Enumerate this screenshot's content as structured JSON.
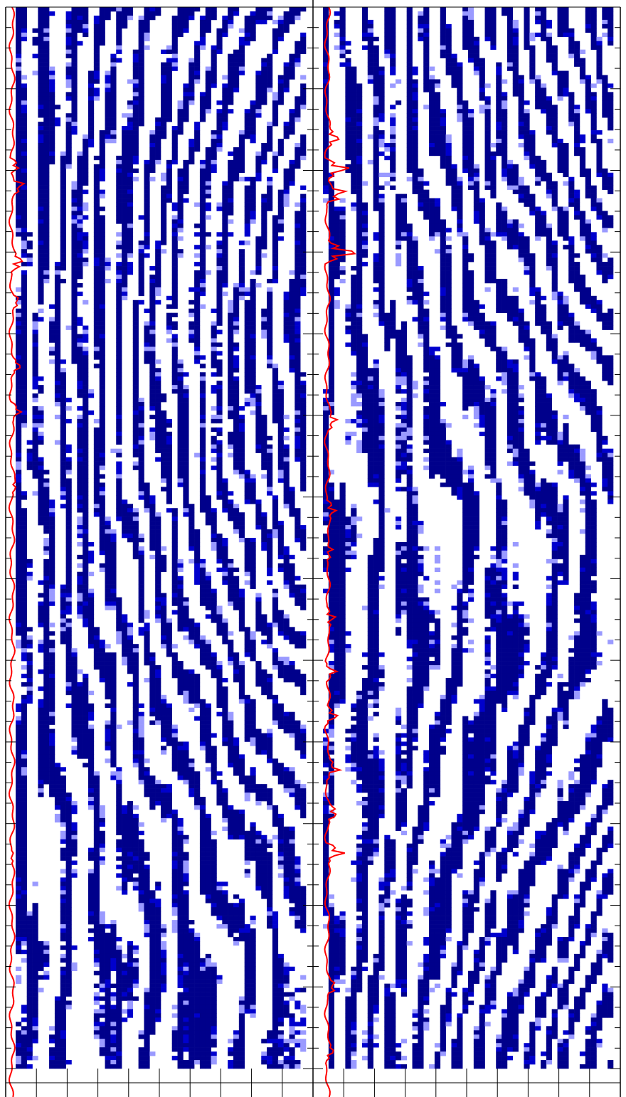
{
  "chart_data": {
    "type": "heatmap",
    "title": "",
    "panel_count": 2,
    "axis": {
      "depth_major_ticks": 13,
      "depth_minor_per_major": 4,
      "bottom_ticks_per_panel": 10,
      "labels_shown": false
    },
    "colors": {
      "strong_event": "#00008b",
      "medium_event": "#0000cd",
      "weak_event": "#9a9aff",
      "background": "#ffffff",
      "log_curve": "#ff0000",
      "frame": "#000000"
    },
    "panels": [
      {
        "name": "",
        "traces": 52,
        "samples": 250,
        "curve_baseline": 0.03,
        "curve_anomalies": [
          {
            "depth": 0.145,
            "amp": 0.08
          },
          {
            "depth": 0.163,
            "amp": 0.1
          },
          {
            "depth": 0.235,
            "amp": 0.12
          },
          {
            "depth": 0.27,
            "amp": 0.05
          },
          {
            "depth": 0.33,
            "amp": 0.06
          },
          {
            "depth": 0.37,
            "amp": 0.07
          },
          {
            "depth": 0.44,
            "amp": 0.04
          },
          {
            "depth": 0.78,
            "amp": 0.03
          }
        ]
      },
      {
        "name": "",
        "traces": 52,
        "samples": 250,
        "curve_baseline": 0.1,
        "curve_anomalies": [
          {
            "depth": 0.12,
            "amp": 0.12
          },
          {
            "depth": 0.148,
            "amp": 0.2
          },
          {
            "depth": 0.172,
            "amp": 0.18
          },
          {
            "depth": 0.225,
            "amp": 0.28
          },
          {
            "depth": 0.38,
            "amp": 0.09
          },
          {
            "depth": 0.46,
            "amp": 0.1
          },
          {
            "depth": 0.5,
            "amp": 0.08
          },
          {
            "depth": 0.56,
            "amp": 0.1
          },
          {
            "depth": 0.61,
            "amp": 0.09
          },
          {
            "depth": 0.65,
            "amp": 0.1
          },
          {
            "depth": 0.7,
            "amp": 0.12
          },
          {
            "depth": 0.74,
            "amp": 0.09
          },
          {
            "depth": 0.775,
            "amp": 0.16
          },
          {
            "depth": 0.9,
            "amp": 0.07
          },
          {
            "depth": 0.96,
            "amp": 0.06
          }
        ]
      }
    ]
  }
}
